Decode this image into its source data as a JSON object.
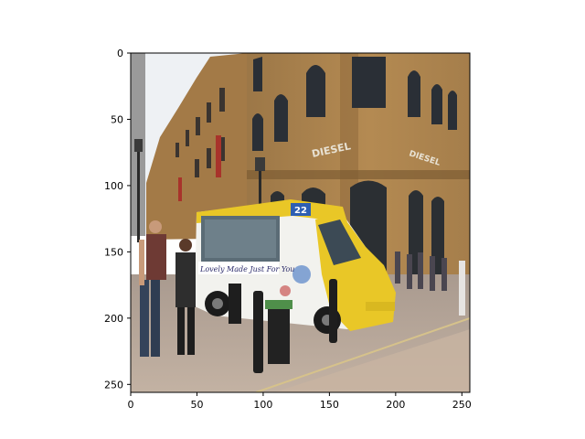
{
  "chart_data": {
    "type": "image",
    "x_ticks": [
      "0",
      "50",
      "100",
      "150",
      "200",
      "250"
    ],
    "y_ticks": [
      "0",
      "50",
      "100",
      "150",
      "200",
      "250"
    ],
    "xlim": [
      0,
      256
    ],
    "ylim": [
      256,
      0
    ],
    "y_inverted": true,
    "grid": false
  },
  "scene": {
    "signs": {
      "diesel_front": "DIESEL",
      "diesel_side": "DIESEL",
      "van_number": "22",
      "van_slogan": "Lovely Made Just For You"
    }
  },
  "colors": {
    "sky": "#eef1f4",
    "brick": "#b48a52",
    "brick_dark": "#8f6a3c",
    "window": "#2a2f36",
    "van_yellow": "#e9c727",
    "van_white": "#f2f2ee",
    "pavement": "#b9a89a",
    "pavement_dark": "#8d7f74",
    "bollard": "#1e1e1e"
  }
}
